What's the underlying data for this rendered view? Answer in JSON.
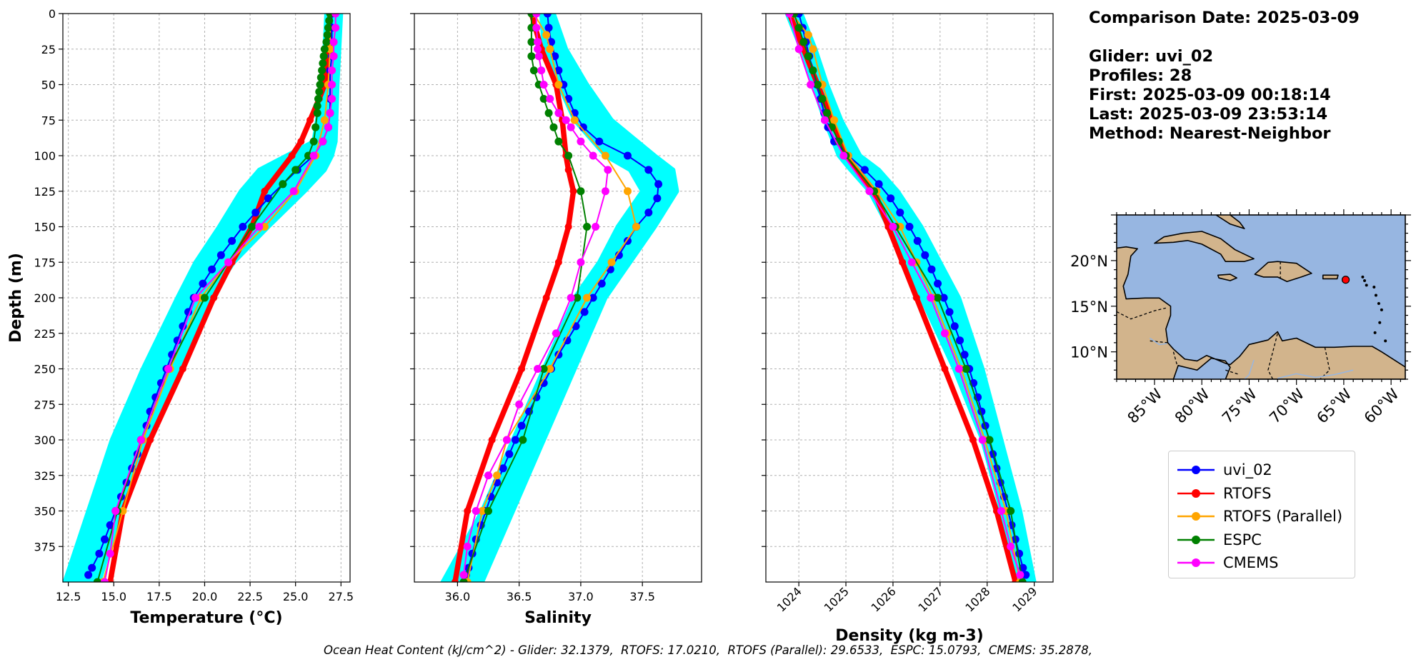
{
  "info": {
    "comparison_date": "Comparison Date: 2025-03-09",
    "glider": "Glider: uvi_02",
    "profiles": "Profiles: 28",
    "first": "First: 2025-03-09 00:18:14",
    "last": "Last: 2025-03-09 23:53:14",
    "method": "Method: Nearest-Neighbor"
  },
  "footer": "Ocean Heat Content (kJ/cm^2) - Glider: 32.1379,  RTOFS: 17.0210,  RTOFS (Parallel): 29.6533,  ESPC: 15.0793,  CMEMS: 35.2878,",
  "colors": {
    "uvi_02": "#0000ff",
    "RTOFS": "#ff0000",
    "RTOFS (Parallel)": "#ffa500",
    "ESPC": "#008000",
    "CMEMS": "#ff00ff",
    "profiles_cloud": "#00ffff",
    "ocean": "#97b6e1",
    "land": "#d2b48c"
  },
  "legend": [
    "uvi_02",
    "RTOFS",
    "RTOFS (Parallel)",
    "ESPC",
    "CMEMS"
  ],
  "chart_data": [
    {
      "type": "line",
      "xlabel": "Temperature (°C)",
      "ylabel": "Depth (m)",
      "xlim": [
        12.2,
        28.0
      ],
      "ylim": [
        400,
        0
      ],
      "xticks": [
        "12.5",
        "15.0",
        "17.5",
        "20.0",
        "22.5",
        "25.0",
        "27.5"
      ],
      "xtick_values": [
        12.5,
        15.0,
        17.5,
        20.0,
        22.5,
        25.0,
        27.5
      ],
      "yticks": [
        "0",
        "25",
        "50",
        "75",
        "100",
        "125",
        "150",
        "175",
        "200",
        "225",
        "250",
        "275",
        "300",
        "325",
        "350",
        "375"
      ],
      "ytick_values": [
        0,
        25,
        50,
        75,
        100,
        125,
        150,
        175,
        200,
        225,
        250,
        275,
        300,
        325,
        350,
        375
      ],
      "grid": true,
      "glider_cloud": {
        "depth": [
          0,
          50,
          90,
          100,
          110,
          125,
          150,
          175,
          200,
          250,
          300,
          350,
          400
        ],
        "min": [
          26.7,
          26.5,
          26.0,
          24.5,
          23.0,
          22.0,
          20.8,
          19.5,
          18.5,
          16.6,
          14.9,
          13.6,
          12.3
        ],
        "max": [
          27.5,
          27.3,
          27.2,
          27.0,
          26.6,
          25.5,
          23.5,
          21.6,
          20.3,
          18.6,
          16.8,
          15.4,
          14.2
        ]
      },
      "series": [
        {
          "name": "uvi_02",
          "depth": [
            0,
            10,
            20,
            30,
            40,
            50,
            60,
            70,
            80,
            90,
            100,
            110,
            120,
            130,
            140,
            150,
            160,
            170,
            180,
            190,
            200,
            210,
            220,
            230,
            240,
            250,
            260,
            270,
            280,
            290,
            300,
            310,
            320,
            330,
            340,
            350,
            360,
            370,
            380,
            390,
            395
          ],
          "values": [
            27.0,
            27.0,
            27.0,
            27.0,
            26.9,
            26.9,
            26.9,
            26.9,
            26.8,
            26.5,
            26.0,
            25.1,
            24.3,
            23.5,
            22.8,
            22.1,
            21.5,
            20.9,
            20.4,
            19.9,
            19.4,
            19.1,
            18.8,
            18.5,
            18.2,
            17.9,
            17.6,
            17.3,
            17.0,
            16.8,
            16.5,
            16.3,
            16.0,
            15.7,
            15.4,
            15.1,
            14.8,
            14.5,
            14.2,
            13.8,
            13.6
          ]
        },
        {
          "name": "RTOFS",
          "depth": [
            0,
            25,
            50,
            60,
            75,
            90,
            100,
            125,
            150,
            175,
            200,
            250,
            300,
            350,
            400
          ],
          "values": [
            26.9,
            26.8,
            26.6,
            26.3,
            25.8,
            25.3,
            24.8,
            23.3,
            22.6,
            21.5,
            20.5,
            18.8,
            17.0,
            15.5,
            14.8
          ]
        },
        {
          "name": "RTOFS (Parallel)",
          "depth": [
            0,
            25,
            50,
            75,
            100,
            125,
            150,
            175,
            200,
            250,
            300,
            350,
            400
          ],
          "values": [
            26.9,
            26.9,
            26.8,
            26.6,
            26.1,
            25.0,
            23.3,
            21.3,
            19.8,
            18.1,
            16.6,
            15.5,
            14.4
          ]
        },
        {
          "name": "ESPC",
          "depth": [
            0,
            5,
            10,
            15,
            20,
            25,
            30,
            35,
            40,
            45,
            50,
            55,
            60,
            65,
            70,
            80,
            90,
            100,
            110,
            120,
            150,
            200,
            250,
            300,
            350,
            400
          ],
          "values": [
            26.9,
            26.85,
            26.8,
            26.75,
            26.7,
            26.6,
            26.55,
            26.5,
            26.45,
            26.4,
            26.35,
            26.3,
            26.25,
            26.2,
            26.2,
            26.1,
            26.0,
            25.7,
            25.0,
            24.3,
            22.6,
            20.0,
            18.0,
            16.5,
            15.2,
            14.1
          ]
        },
        {
          "name": "CMEMS",
          "depth": [
            0,
            10,
            20,
            30,
            40,
            50,
            60,
            70,
            80,
            90,
            100,
            125,
            150,
            175,
            200,
            250,
            300,
            350,
            380,
            400
          ],
          "values": [
            27.2,
            27.2,
            27.1,
            27.1,
            27.0,
            27.0,
            27.0,
            26.9,
            26.8,
            26.5,
            26.0,
            24.9,
            23.0,
            21.3,
            19.5,
            18.0,
            16.5,
            15.1,
            14.8,
            14.5
          ]
        }
      ]
    },
    {
      "type": "line",
      "xlabel": "Salinity",
      "xlim": [
        35.65,
        37.98
      ],
      "ylim": [
        400,
        0
      ],
      "xticks": [
        "36.0",
        "36.5",
        "37.0",
        "37.5"
      ],
      "xtick_values": [
        36.0,
        36.5,
        37.0,
        37.5
      ],
      "grid": true,
      "glider_cloud": {
        "depth": [
          0,
          25,
          50,
          75,
          100,
          110,
          125,
          150,
          175,
          200,
          250,
          300,
          350,
          400
        ],
        "min": [
          36.68,
          36.7,
          36.82,
          36.95,
          37.2,
          37.4,
          37.5,
          37.3,
          37.15,
          36.95,
          36.7,
          36.45,
          36.2,
          35.88
        ],
        "max": [
          36.78,
          36.88,
          37.05,
          37.25,
          37.6,
          37.75,
          37.78,
          37.6,
          37.4,
          37.2,
          36.95,
          36.7,
          36.45,
          36.2
        ]
      },
      "series": [
        {
          "name": "uvi_02",
          "depth": [
            0,
            10,
            20,
            30,
            40,
            50,
            60,
            70,
            80,
            90,
            100,
            110,
            120,
            130,
            140,
            150,
            160,
            170,
            180,
            190,
            200,
            210,
            220,
            230,
            240,
            250,
            260,
            270,
            280,
            290,
            300,
            310,
            320,
            330,
            340,
            350,
            360,
            370,
            380,
            390,
            395
          ],
          "values": [
            36.73,
            36.74,
            36.76,
            36.79,
            36.82,
            36.86,
            36.9,
            36.95,
            37.02,
            37.15,
            37.38,
            37.55,
            37.63,
            37.62,
            37.55,
            37.45,
            37.38,
            37.31,
            37.24,
            37.17,
            37.1,
            37.03,
            36.96,
            36.89,
            36.82,
            36.76,
            36.7,
            36.64,
            36.58,
            36.52,
            36.47,
            36.42,
            36.37,
            36.32,
            36.27,
            36.23,
            36.19,
            36.15,
            36.12,
            36.09,
            36.07
          ]
        },
        {
          "name": "RTOFS",
          "depth": [
            0,
            25,
            50,
            75,
            100,
            110,
            125,
            150,
            175,
            200,
            250,
            300,
            350,
            400
          ],
          "values": [
            36.6,
            36.68,
            36.8,
            36.85,
            36.88,
            36.9,
            36.94,
            36.9,
            36.82,
            36.72,
            36.52,
            36.28,
            36.08,
            35.98
          ]
        },
        {
          "name": "RTOFS (Parallel)",
          "depth": [
            0,
            15,
            25,
            50,
            75,
            100,
            125,
            150,
            175,
            200,
            250,
            300,
            325,
            350,
            400
          ],
          "values": [
            36.62,
            36.72,
            36.75,
            36.82,
            36.95,
            37.2,
            37.38,
            37.45,
            37.25,
            37.05,
            36.75,
            36.4,
            36.32,
            36.2,
            36.08
          ]
        },
        {
          "name": "ESPC",
          "depth": [
            0,
            10,
            20,
            30,
            40,
            50,
            60,
            70,
            80,
            90,
            100,
            125,
            150,
            200,
            250,
            300,
            350,
            400
          ],
          "values": [
            36.6,
            36.6,
            36.6,
            36.6,
            36.62,
            36.66,
            36.7,
            36.74,
            36.78,
            36.82,
            36.9,
            37.0,
            37.05,
            36.97,
            36.7,
            36.53,
            36.25,
            36.05
          ]
        },
        {
          "name": "CMEMS",
          "depth": [
            0,
            10,
            20,
            25,
            30,
            40,
            50,
            60,
            70,
            75,
            80,
            90,
            100,
            110,
            125,
            150,
            175,
            200,
            225,
            250,
            275,
            300,
            325,
            350,
            375,
            395
          ],
          "values": [
            36.64,
            36.64,
            36.65,
            36.65,
            36.66,
            36.68,
            36.7,
            36.75,
            36.82,
            36.88,
            36.92,
            37.0,
            37.1,
            37.22,
            37.2,
            37.12,
            37.0,
            36.92,
            36.8,
            36.65,
            36.5,
            36.4,
            36.25,
            36.15,
            36.08,
            36.05
          ]
        }
      ]
    },
    {
      "type": "line",
      "xlabel": "Density (kg m-3)",
      "xlim": [
        1023.3,
        1029.4
      ],
      "ylim": [
        400,
        0
      ],
      "xticks": [
        "1024",
        "1025",
        "1026",
        "1027",
        "1028",
        "1029"
      ],
      "xtick_values": [
        1024,
        1025,
        1026,
        1027,
        1028,
        1029
      ],
      "grid": true,
      "glider_cloud": {
        "depth": [
          0,
          25,
          50,
          75,
          100,
          110,
          125,
          150,
          175,
          200,
          250,
          300,
          350,
          400
        ],
        "min": [
          1023.75,
          1024.05,
          1024.3,
          1024.55,
          1024.85,
          1025.1,
          1025.5,
          1025.9,
          1026.2,
          1026.6,
          1027.3,
          1027.9,
          1028.3,
          1028.6
        ],
        "max": [
          1024.05,
          1024.35,
          1024.6,
          1024.9,
          1025.3,
          1025.7,
          1026.1,
          1026.6,
          1027.0,
          1027.4,
          1027.9,
          1028.3,
          1028.7,
          1029.0
        ]
      },
      "series": [
        {
          "name": "uvi_02",
          "depth": [
            0,
            10,
            20,
            30,
            40,
            50,
            60,
            70,
            80,
            90,
            100,
            110,
            120,
            130,
            140,
            150,
            160,
            170,
            180,
            190,
            200,
            210,
            220,
            230,
            240,
            250,
            260,
            270,
            280,
            290,
            300,
            310,
            320,
            330,
            340,
            350,
            360,
            370,
            380,
            390,
            395
          ],
          "values": [
            1024.0,
            1024.08,
            1024.15,
            1024.22,
            1024.3,
            1024.38,
            1024.46,
            1024.54,
            1024.62,
            1024.75,
            1025.05,
            1025.4,
            1025.7,
            1025.95,
            1026.15,
            1026.35,
            1026.52,
            1026.68,
            1026.82,
            1026.95,
            1027.08,
            1027.2,
            1027.31,
            1027.42,
            1027.52,
            1027.62,
            1027.71,
            1027.8,
            1027.88,
            1027.96,
            1028.04,
            1028.12,
            1028.2,
            1028.28,
            1028.36,
            1028.44,
            1028.52,
            1028.6,
            1028.68,
            1028.76,
            1028.82
          ]
        },
        {
          "name": "RTOFS",
          "depth": [
            0,
            25,
            50,
            75,
            100,
            125,
            150,
            175,
            200,
            250,
            300,
            350,
            400
          ],
          "values": [
            1023.8,
            1024.1,
            1024.4,
            1024.7,
            1025.0,
            1025.6,
            1025.9,
            1026.2,
            1026.5,
            1027.1,
            1027.7,
            1028.2,
            1028.6
          ]
        },
        {
          "name": "RTOFS (Parallel)",
          "depth": [
            0,
            15,
            25,
            50,
            75,
            100,
            125,
            150,
            175,
            200,
            225,
            250,
            300,
            350,
            400
          ],
          "values": [
            1023.85,
            1024.2,
            1024.3,
            1024.5,
            1024.75,
            1025.05,
            1025.65,
            1026.15,
            1026.5,
            1026.85,
            1027.15,
            1027.45,
            1027.95,
            1028.4,
            1028.7
          ]
        },
        {
          "name": "ESPC",
          "depth": [
            0,
            10,
            20,
            30,
            40,
            50,
            60,
            70,
            80,
            90,
            100,
            125,
            150,
            200,
            250,
            300,
            350,
            400
          ],
          "values": [
            1023.9,
            1024.0,
            1024.1,
            1024.2,
            1024.3,
            1024.4,
            1024.5,
            1024.6,
            1024.7,
            1024.85,
            1025.0,
            1025.6,
            1026.05,
            1026.95,
            1027.55,
            1028.05,
            1028.5,
            1028.75
          ]
        },
        {
          "name": "CMEMS",
          "depth": [
            0,
            25,
            50,
            75,
            100,
            125,
            150,
            175,
            200,
            225,
            250,
            300,
            350,
            375,
            395
          ],
          "values": [
            1023.8,
            1024.0,
            1024.25,
            1024.55,
            1024.95,
            1025.5,
            1026.0,
            1026.4,
            1026.8,
            1027.1,
            1027.4,
            1027.9,
            1028.3,
            1028.5,
            1028.7
          ]
        }
      ]
    }
  ],
  "map": {
    "lat_ticks": [
      "20°N",
      "15°N",
      "10°N"
    ],
    "lat_values": [
      20,
      15,
      10
    ],
    "lon_ticks": [
      "85°W",
      "80°W",
      "75°W",
      "70°W",
      "65°W",
      "60°W"
    ],
    "lon_values": [
      -85,
      -80,
      -75,
      -70,
      -65,
      -60
    ],
    "lon_range": [
      -89,
      -58.5
    ],
    "lat_range": [
      7,
      25
    ],
    "glider_position": {
      "lon": -64.8,
      "lat": 17.9
    }
  }
}
